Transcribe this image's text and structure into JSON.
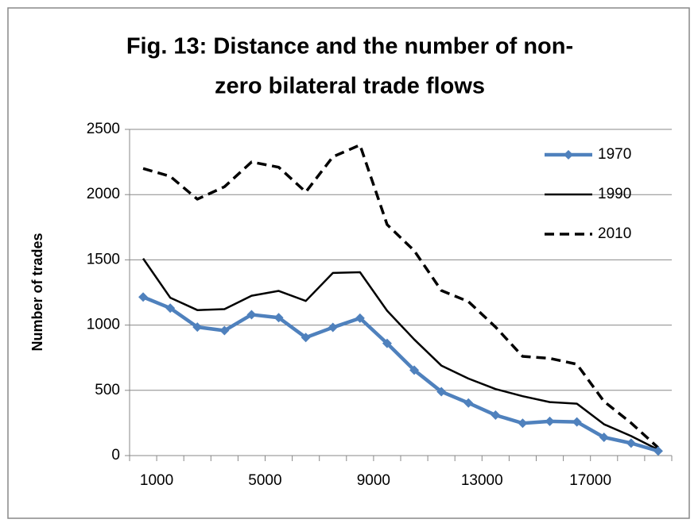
{
  "chart_data": {
    "type": "line",
    "title": [
      "Fig. 13: Distance and the number of non-",
      "zero bilateral trade flows"
    ],
    "y_label": "Number of trades",
    "categories": [
      "1000",
      null,
      null,
      null,
      "5000",
      null,
      null,
      null,
      "9000",
      null,
      null,
      null,
      "13000",
      null,
      null,
      null,
      "17000",
      null,
      null,
      null
    ],
    "series": [
      {
        "name": "1970",
        "color": "#4f81bd",
        "dash": false,
        "marker": "diamond",
        "values": [
          1215,
          1130,
          985,
          958,
          1080,
          1057,
          905,
          982,
          1053,
          860,
          655,
          490,
          403,
          310,
          248,
          262,
          258,
          140,
          95,
          35
        ]
      },
      {
        "name": "1990",
        "color": "#000000",
        "dash": false,
        "marker": null,
        "values": [
          1510,
          1210,
          1115,
          1122,
          1225,
          1262,
          1185,
          1400,
          1405,
          1110,
          890,
          690,
          590,
          510,
          455,
          410,
          398,
          240,
          150,
          45
        ]
      },
      {
        "name": "2010",
        "color": "#000000",
        "dash": true,
        "marker": null,
        "values": [
          2200,
          2140,
          1965,
          2060,
          2250,
          2210,
          2020,
          2290,
          2380,
          1770,
          1570,
          1265,
          1180,
          985,
          760,
          745,
          700,
          415,
          250,
          60
        ]
      }
    ],
    "ylim": [
      0,
      2500
    ],
    "yticks": [
      0,
      500,
      1000,
      1500,
      2000,
      2500
    ],
    "grid": true,
    "legend": "right"
  }
}
